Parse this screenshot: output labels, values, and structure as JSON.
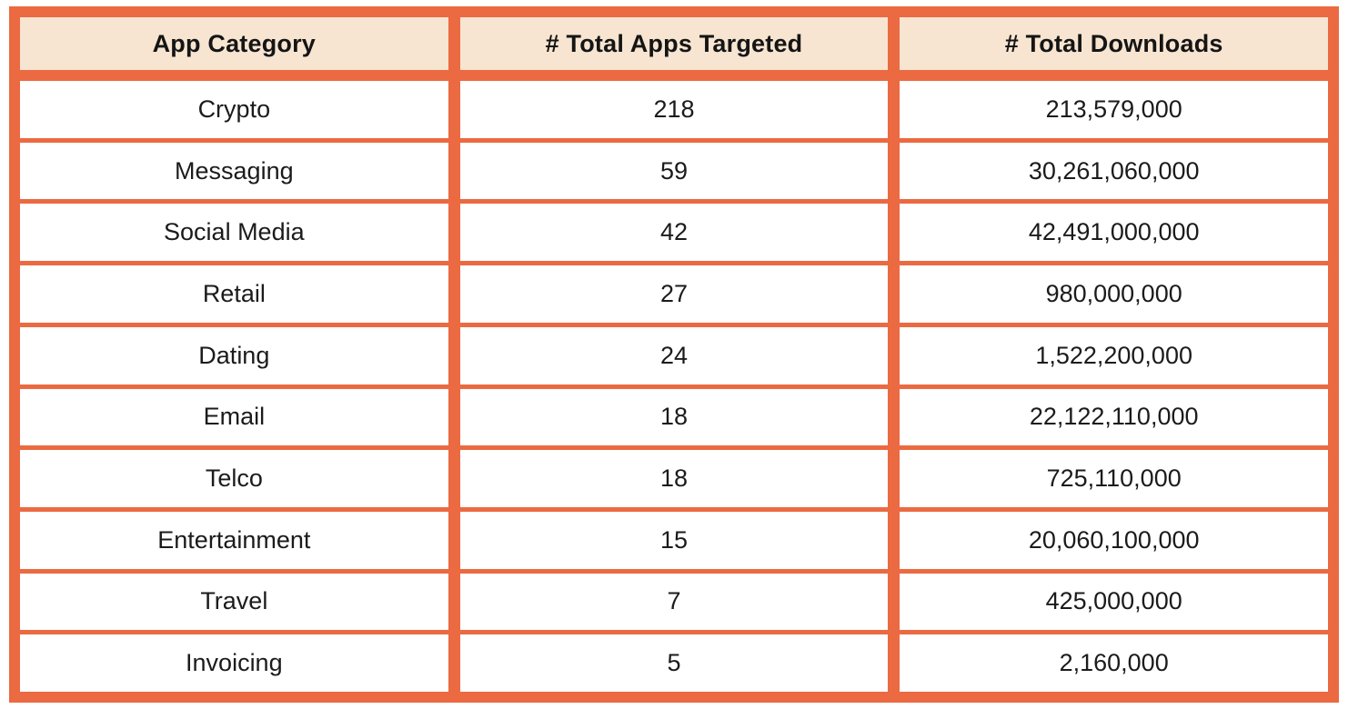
{
  "colors": {
    "grid_orange": "#EB6A42",
    "header_cream": "#F7E5D1",
    "cell_white": "#FFFFFF",
    "text_black": "#1B1B1B"
  },
  "chart_data": {
    "type": "table",
    "columns": [
      "App Category",
      "# Total Apps Targeted",
      "# Total Downloads"
    ],
    "rows": [
      [
        "Crypto",
        "218",
        "213,579,000"
      ],
      [
        "Messaging",
        "59",
        "30,261,060,000"
      ],
      [
        "Social Media",
        "42",
        "42,491,000,000"
      ],
      [
        "Retail",
        "27",
        "980,000,000"
      ],
      [
        "Dating",
        "24",
        "1,522,200,000"
      ],
      [
        "Email",
        "18",
        "22,122,110,000"
      ],
      [
        "Telco",
        "18",
        "725,110,000"
      ],
      [
        "Entertainment",
        "15",
        "20,060,100,000"
      ],
      [
        "Travel",
        "7",
        "425,000,000"
      ],
      [
        "Invoicing",
        "5",
        "2,160,000"
      ]
    ]
  }
}
